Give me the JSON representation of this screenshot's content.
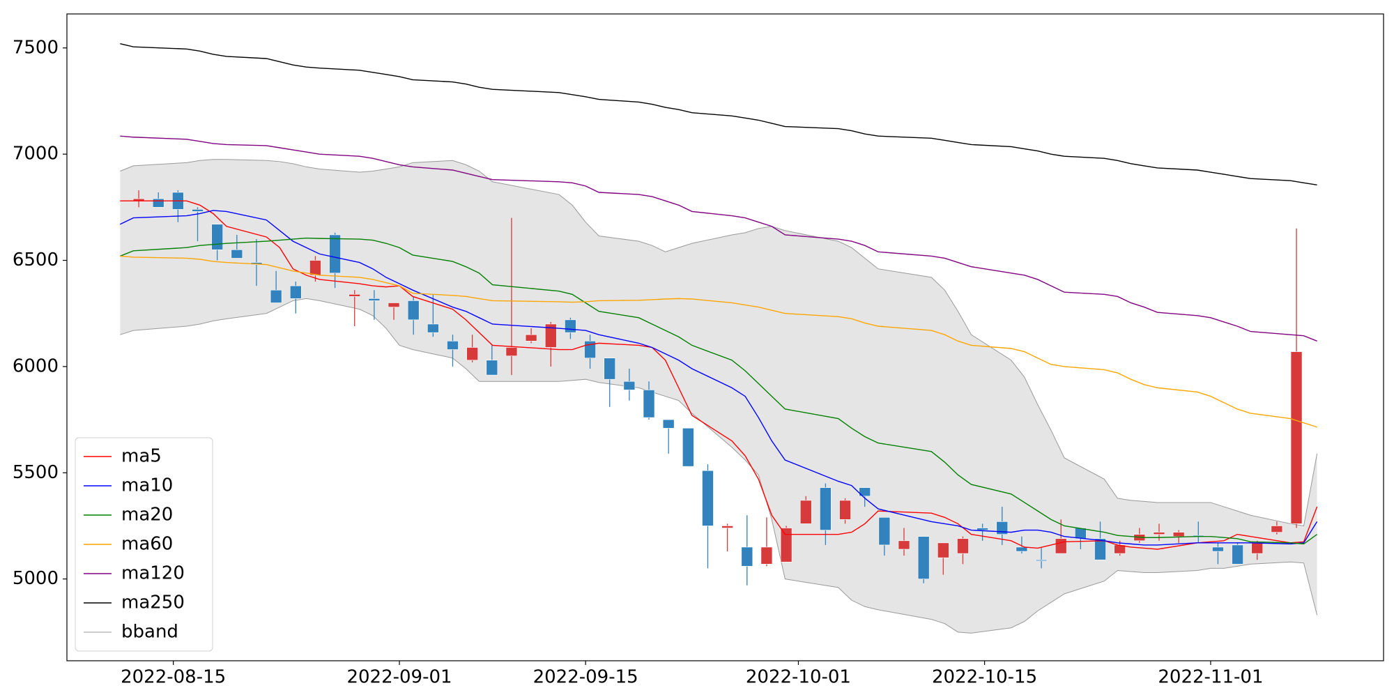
{
  "chart_data": {
    "type": "candlestick",
    "x": [
      "2022-08-11",
      "2022-08-12",
      "2022-08-16",
      "2022-08-17",
      "2022-08-18",
      "2022-08-19",
      "2022-08-22",
      "2022-08-23",
      "2022-08-24",
      "2022-08-25",
      "2022-08-26",
      "2022-08-29",
      "2022-08-30",
      "2022-08-31",
      "2022-09-01",
      "2022-09-02",
      "2022-09-05",
      "2022-09-06",
      "2022-09-07",
      "2022-09-08",
      "2022-09-13",
      "2022-09-14",
      "2022-09-15",
      "2022-09-16",
      "2022-09-19",
      "2022-09-20",
      "2022-09-21",
      "2022-09-22",
      "2022-09-23",
      "2022-09-26",
      "2022-09-27",
      "2022-09-28",
      "2022-09-29",
      "2022-09-30",
      "2022-10-04",
      "2022-10-05",
      "2022-10-06",
      "2022-10-07",
      "2022-10-11",
      "2022-10-12",
      "2022-10-13",
      "2022-10-14",
      "2022-10-17",
      "2022-10-18",
      "2022-10-19",
      "2022-10-20",
      "2022-10-21",
      "2022-10-24",
      "2022-10-25",
      "2022-10-26",
      "2022-10-27",
      "2022-10-28",
      "2022-10-31",
      "2022-11-01",
      "2022-11-02",
      "2022-11-03",
      "2022-11-04",
      "2022-11-07",
      "2022-11-08",
      "2022-11-09"
    ],
    "open": [
      6780,
      6790,
      6820,
      6740,
      6670,
      6550,
      6490,
      6360,
      6380,
      6430,
      6620,
      6330,
      6320,
      6280,
      6310,
      6200,
      6120,
      6030,
      6030,
      6050,
      6120,
      6090,
      6220,
      6120,
      6040,
      5930,
      5890,
      5750,
      5710,
      5510,
      5240,
      5150,
      5070,
      5080,
      5260,
      5430,
      5280,
      5430,
      5290,
      5140,
      5200,
      5100,
      5120,
      5240,
      5270,
      5150,
      5090,
      5120,
      5240,
      5190,
      5120,
      5180,
      5210,
      5200,
      5205,
      5150,
      5160,
      5120,
      5220,
      5260
    ],
    "close": [
      6790,
      6750,
      6740,
      6730,
      6550,
      6510,
      6480,
      6300,
      6320,
      6500,
      6440,
      6340,
      6310,
      6300,
      6220,
      6160,
      6080,
      6090,
      5960,
      6090,
      6150,
      6200,
      6160,
      6040,
      5940,
      5890,
      5760,
      5710,
      5530,
      5250,
      5250,
      5060,
      5150,
      5240,
      5370,
      5230,
      5370,
      5390,
      5160,
      5180,
      5000,
      5170,
      5190,
      5230,
      5210,
      5130,
      5085,
      5190,
      5190,
      5090,
      5160,
      5210,
      5220,
      5220,
      5200,
      5130,
      5070,
      5170,
      5250,
      6070
    ],
    "high": [
      6830,
      6820,
      6830,
      6750,
      6670,
      6620,
      6600,
      6450,
      6400,
      6520,
      6630,
      6360,
      6360,
      6300,
      6330,
      6340,
      6150,
      6150,
      6100,
      6700,
      6180,
      6210,
      6230,
      6150,
      6040,
      5990,
      5930,
      5750,
      5710,
      5540,
      5260,
      5300,
      5290,
      5250,
      5390,
      5450,
      5380,
      5430,
      5290,
      5240,
      5200,
      5170,
      5200,
      5260,
      5340,
      5200,
      5150,
      5280,
      5240,
      5270,
      5180,
      5240,
      5260,
      5230,
      5270,
      5170,
      5170,
      5180,
      5270,
      6650
    ],
    "low": [
      6750,
      6750,
      6680,
      6590,
      6500,
      6510,
      6380,
      6300,
      6250,
      6400,
      6370,
      6190,
      6220,
      6220,
      6150,
      6140,
      6000,
      6020,
      5960,
      5960,
      6110,
      6000,
      6130,
      5990,
      5810,
      5840,
      5750,
      5590,
      5530,
      5050,
      5130,
      4970,
      5060,
      5080,
      5260,
      5160,
      5260,
      5340,
      5110,
      5110,
      4980,
      5020,
      5070,
      5180,
      5160,
      5120,
      5050,
      5120,
      5140,
      5090,
      5110,
      5170,
      5180,
      5170,
      5170,
      5070,
      5070,
      5090,
      5210,
      5240
    ],
    "up_color": "#d73a3a",
    "down_color": "#3182bd",
    "series": [
      {
        "name": "ma5",
        "color": "#ff0000",
        "values": [
          6780,
          6780,
          6780,
          6760,
          6720,
          6660,
          6610,
          6560,
          6460,
          6430,
          6410,
          6390,
          6380,
          6375,
          6380,
          6330,
          6270,
          6220,
          6160,
          6100,
          6080,
          6080,
          6100,
          6110,
          6100,
          6090,
          6030,
          5900,
          5770,
          5650,
          5580,
          5470,
          5300,
          5210,
          5210,
          5220,
          5260,
          5320,
          5310,
          5290,
          5260,
          5210,
          5180,
          5150,
          5145,
          5160,
          5175,
          5180,
          5160,
          5150,
          5145,
          5140,
          5170,
          5175,
          5180,
          5210,
          5200,
          5170,
          5175,
          5340
        ]
      },
      {
        "name": "ma10",
        "color": "#0000ff",
        "values": [
          6670,
          6700,
          6710,
          6720,
          6735,
          6730,
          6690,
          6640,
          6590,
          6560,
          6530,
          6490,
          6460,
          6420,
          6390,
          6360,
          6280,
          6260,
          6230,
          6200,
          6180,
          6175,
          6170,
          6150,
          6110,
          6090,
          6060,
          6030,
          5990,
          5900,
          5860,
          5760,
          5650,
          5560,
          5460,
          5440,
          5380,
          5330,
          5270,
          5260,
          5250,
          5230,
          5220,
          5230,
          5230,
          5220,
          5200,
          5180,
          5170,
          5165,
          5160,
          5160,
          5170,
          5170,
          5170,
          5170,
          5170,
          5165,
          5170,
          5270
        ]
      },
      {
        "name": "ma20",
        "color": "#008000",
        "values": [
          6520,
          6545,
          6560,
          6570,
          6575,
          6580,
          6590,
          6595,
          6600,
          6605,
          6603,
          6600,
          6595,
          6580,
          6560,
          6525,
          6495,
          6470,
          6440,
          6385,
          6355,
          6340,
          6300,
          6260,
          6230,
          6200,
          6170,
          6140,
          6100,
          6030,
          5980,
          5920,
          5860,
          5800,
          5755,
          5710,
          5670,
          5640,
          5600,
          5550,
          5490,
          5445,
          5400,
          5360,
          5320,
          5280,
          5250,
          5220,
          5205,
          5200,
          5195,
          5195,
          5200,
          5200,
          5195,
          5190,
          5175,
          5170,
          5165,
          5210
        ]
      },
      {
        "name": "ma60",
        "color": "#ffa500",
        "values": [
          6520,
          6515,
          6510,
          6505,
          6495,
          6490,
          6480,
          6465,
          6450,
          6440,
          6430,
          6420,
          6410,
          6395,
          6380,
          6345,
          6335,
          6330,
          6320,
          6310,
          6305,
          6303,
          6305,
          6310,
          6312,
          6315,
          6318,
          6320,
          6318,
          6300,
          6290,
          6280,
          6265,
          6250,
          6235,
          6225,
          6205,
          6190,
          6170,
          6150,
          6120,
          6100,
          6085,
          6070,
          6040,
          6010,
          6000,
          5985,
          5970,
          5940,
          5915,
          5900,
          5880,
          5860,
          5830,
          5800,
          5780,
          5755,
          5735,
          5715
        ]
      },
      {
        "name": "ma120",
        "color": "#800080",
        "values": [
          7085,
          7080,
          7070,
          7060,
          7050,
          7045,
          7040,
          7030,
          7020,
          7010,
          7000,
          6990,
          6980,
          6965,
          6950,
          6940,
          6925,
          6910,
          6895,
          6880,
          6870,
          6865,
          6850,
          6820,
          6810,
          6800,
          6780,
          6760,
          6730,
          6710,
          6700,
          6680,
          6660,
          6620,
          6600,
          6590,
          6570,
          6540,
          6520,
          6510,
          6490,
          6470,
          6440,
          6430,
          6410,
          6380,
          6350,
          6340,
          6330,
          6300,
          6280,
          6255,
          6240,
          6230,
          6210,
          6190,
          6165,
          6150,
          6145,
          6120
        ]
      },
      {
        "name": "ma250",
        "color": "#000000",
        "values": [
          7520,
          7505,
          7495,
          7485,
          7470,
          7460,
          7450,
          7435,
          7420,
          7410,
          7405,
          7395,
          7385,
          7375,
          7365,
          7350,
          7340,
          7330,
          7315,
          7305,
          7290,
          7280,
          7270,
          7258,
          7245,
          7235,
          7220,
          7210,
          7195,
          7180,
          7170,
          7160,
          7145,
          7130,
          7120,
          7110,
          7095,
          7085,
          7075,
          7065,
          7055,
          7045,
          7035,
          7025,
          7015,
          7000,
          6990,
          6980,
          6970,
          6955,
          6945,
          6935,
          6925,
          6915,
          6905,
          6895,
          6885,
          6875,
          6865,
          6855
        ]
      },
      {
        "name": "bband",
        "color": "#999999",
        "fill": "#e5e5e5",
        "upper": [
          6920,
          6945,
          6960,
          6970,
          6975,
          6975,
          6970,
          6965,
          6955,
          6940,
          6930,
          6915,
          6920,
          6930,
          6940,
          6960,
          6970,
          6950,
          6920,
          6870,
          6810,
          6760,
          6680,
          6615,
          6590,
          6570,
          6540,
          6560,
          6580,
          6620,
          6630,
          6650,
          6660,
          6640,
          6590,
          6560,
          6510,
          6460,
          6420,
          6360,
          6260,
          6150,
          6030,
          5950,
          5820,
          5700,
          5570,
          5470,
          5380,
          5370,
          5365,
          5360,
          5360,
          5360,
          5340,
          5320,
          5300,
          5260,
          5250,
          5590
        ],
        "lower": [
          6150,
          6170,
          6190,
          6200,
          6215,
          6225,
          6250,
          6280,
          6310,
          6320,
          6310,
          6270,
          6240,
          6180,
          6100,
          6080,
          6040,
          5990,
          5930,
          5930,
          5930,
          5935,
          5940,
          5925,
          5900,
          5880,
          5860,
          5840,
          5780,
          5620,
          5560,
          5490,
          5280,
          5000,
          4960,
          4900,
          4870,
          4855,
          4810,
          4790,
          4750,
          4745,
          4770,
          4800,
          4850,
          4890,
          4930,
          4990,
          5040,
          5035,
          5030,
          5030,
          5040,
          5050,
          5050,
          5060,
          5070,
          5080,
          5075,
          4830
        ]
      }
    ],
    "xlim": [
      "2022-08-07",
      "2022-11-14"
    ],
    "xticks": [
      "2022-08-15",
      "2022-09-01",
      "2022-09-15",
      "2022-10-01",
      "2022-10-15",
      "2022-11-01"
    ],
    "ylim": [
      4615,
      7660
    ],
    "yticks": [
      5000,
      5500,
      6000,
      6500,
      7000,
      7500
    ],
    "legend": "lower left"
  }
}
